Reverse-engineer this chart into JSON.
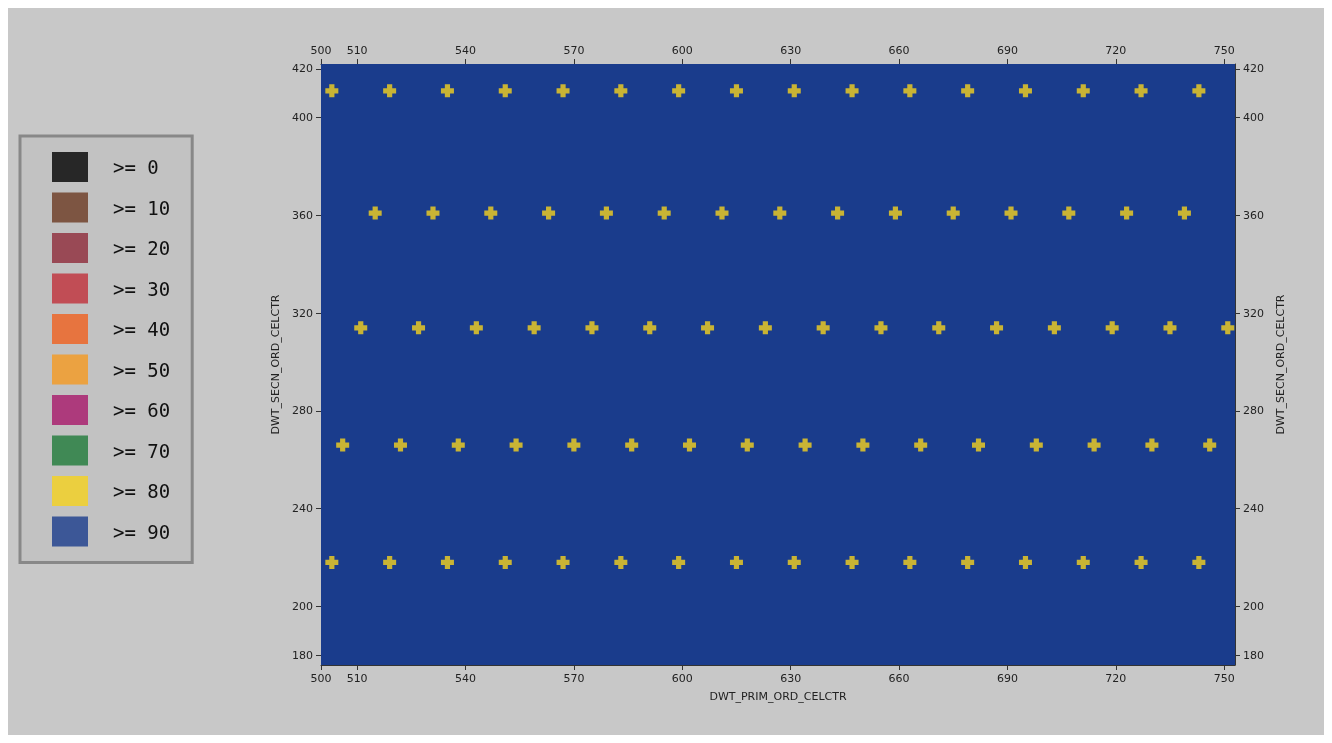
{
  "chart_data": {
    "type": "scatter",
    "xlabel": "DWT_PRIM_ORD_CELCTR",
    "ylabel": "DWT_SECN_ORD_CELCTR",
    "y2label": "DWT_SECN_ORD_CELCTR",
    "xlim": [
      500,
      753
    ],
    "xticks": [
      500,
      510,
      540,
      570,
      600,
      630,
      660,
      690,
      720,
      750
    ],
    "x2lim": [
      500,
      753
    ],
    "x2ticks": [
      500,
      510,
      540,
      570,
      600,
      630,
      660,
      690,
      720,
      750
    ],
    "ylim": [
      176,
      422
    ],
    "yticks": [
      180,
      200,
      240,
      280,
      320,
      360,
      400,
      420
    ],
    "y2lim": [
      176,
      422
    ],
    "y2ticks": [
      180,
      200,
      240,
      280,
      320,
      360,
      400,
      420
    ],
    "marker": "cross",
    "legend": "left",
    "bands": [
      {
        "axis": "y",
        "from": 176,
        "to": 422,
        "color": "#1a3c8c"
      }
    ],
    "series": [
      {
        "name": ">= 0",
        "color": "#000000"
      },
      {
        "name": ">= 10",
        "color": "#6b3a22"
      },
      {
        "name": ">= 20",
        "color": "#8e2a3a"
      },
      {
        "name": ">= 30",
        "color": "#c0303a"
      },
      {
        "name": ">= 40",
        "color": "#f0601e"
      },
      {
        "name": ">= 50",
        "color": "#f59a20"
      },
      {
        "name": ">= 60",
        "color": "#a8186a"
      },
      {
        "name": ">= 70",
        "color": "#1f7a3a"
      },
      {
        "name": ">= 80",
        "color": "#f5d21e",
        "x": [
          503,
          519,
          535,
          551,
          567,
          583,
          599,
          615,
          631,
          647,
          663,
          679,
          695,
          711,
          727,
          743,
          515,
          531,
          547,
          563,
          579,
          595,
          611,
          627,
          643,
          659,
          675,
          691,
          707,
          723,
          739,
          511,
          527,
          543,
          559,
          575,
          591,
          607,
          623,
          639,
          655,
          671,
          687,
          703,
          719,
          735,
          751,
          506,
          522,
          538,
          554,
          570,
          586,
          602,
          618,
          634,
          650,
          666,
          682,
          698,
          714,
          730,
          746,
          503,
          519,
          535,
          551,
          567,
          583,
          599,
          615,
          631,
          647,
          663,
          679,
          695,
          711,
          727,
          743
        ],
        "values": [
          411,
          411,
          411,
          411,
          411,
          411,
          411,
          411,
          411,
          411,
          411,
          411,
          411,
          411,
          411,
          411,
          361,
          361,
          361,
          361,
          361,
          361,
          361,
          361,
          361,
          361,
          361,
          361,
          361,
          361,
          361,
          314,
          314,
          314,
          314,
          314,
          314,
          314,
          314,
          314,
          314,
          314,
          314,
          314,
          314,
          314,
          314,
          266,
          266,
          266,
          266,
          266,
          266,
          266,
          266,
          266,
          266,
          266,
          266,
          266,
          266,
          266,
          266,
          218,
          218,
          218,
          218,
          218,
          218,
          218,
          218,
          218,
          218,
          218,
          218,
          218,
          218,
          218,
          218
        ]
      },
      {
        "name": ">= 90",
        "color": "#1a3c8c"
      }
    ]
  }
}
